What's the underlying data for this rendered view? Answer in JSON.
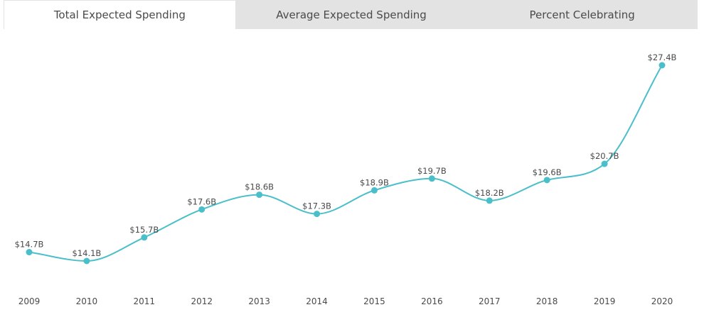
{
  "tabs": [
    {
      "label": "Total Expected Spending",
      "active": true
    },
    {
      "label": "Average Expected Spending",
      "active": false
    },
    {
      "label": "Percent Celebrating",
      "active": false
    }
  ],
  "colors": {
    "line": "#4bbfc9",
    "tab_bar": "#e3e3e3",
    "text": "#4a4a4a"
  },
  "chart_data": {
    "type": "line",
    "title": "",
    "xlabel": "",
    "ylabel": "",
    "x": [
      "2009",
      "2010",
      "2011",
      "2012",
      "2013",
      "2014",
      "2015",
      "2016",
      "2017",
      "2018",
      "2019",
      "2020"
    ],
    "values": [
      14.7,
      14.1,
      15.7,
      17.6,
      18.6,
      17.3,
      18.9,
      19.7,
      18.2,
      19.6,
      20.7,
      27.4
    ],
    "labels": [
      "$14.7B",
      "$14.1B",
      "$15.7B",
      "$17.6B",
      "$18.6B",
      "$17.3B",
      "$18.9B",
      "$19.7B",
      "$18.2B",
      "$19.6B",
      "$20.7B",
      "$27.4B"
    ],
    "grid": false,
    "legend": "none"
  }
}
